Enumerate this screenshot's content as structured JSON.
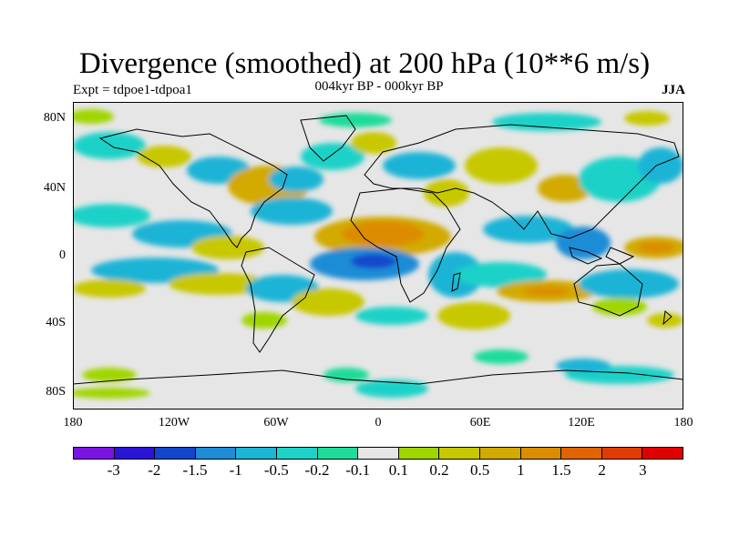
{
  "title": "Divergence (smoothed) at 200 hPa (10**6 m/s)",
  "subtitle_left": "Expt = tdpoe1-tdpoa1",
  "subtitle_center": "004kyr BP - 000kyr BP",
  "subtitle_right": "JJA",
  "y_axis": {
    "labels": [
      "80N",
      "40N",
      "0",
      "40S",
      "80S"
    ]
  },
  "x_axis": {
    "labels": [
      "180",
      "120W",
      "60W",
      "0",
      "60E",
      "120E",
      "180"
    ]
  },
  "legend": {
    "colors": [
      "#7a14e0",
      "#2a14d6",
      "#1446cc",
      "#1e8cd6",
      "#1eb4d6",
      "#1ed2c8",
      "#1edc9a",
      "#e6e6e6",
      "#a0d600",
      "#c8c800",
      "#d2aa00",
      "#dc8c00",
      "#e06400",
      "#e03c00",
      "#e00000"
    ],
    "labels": [
      "-3",
      "-2",
      "-1.5",
      "-1",
      "-0.5",
      "-0.2",
      "-0.1",
      "0.1",
      "0.2",
      "0.5",
      "1",
      "1.5",
      "2",
      "3"
    ]
  }
}
